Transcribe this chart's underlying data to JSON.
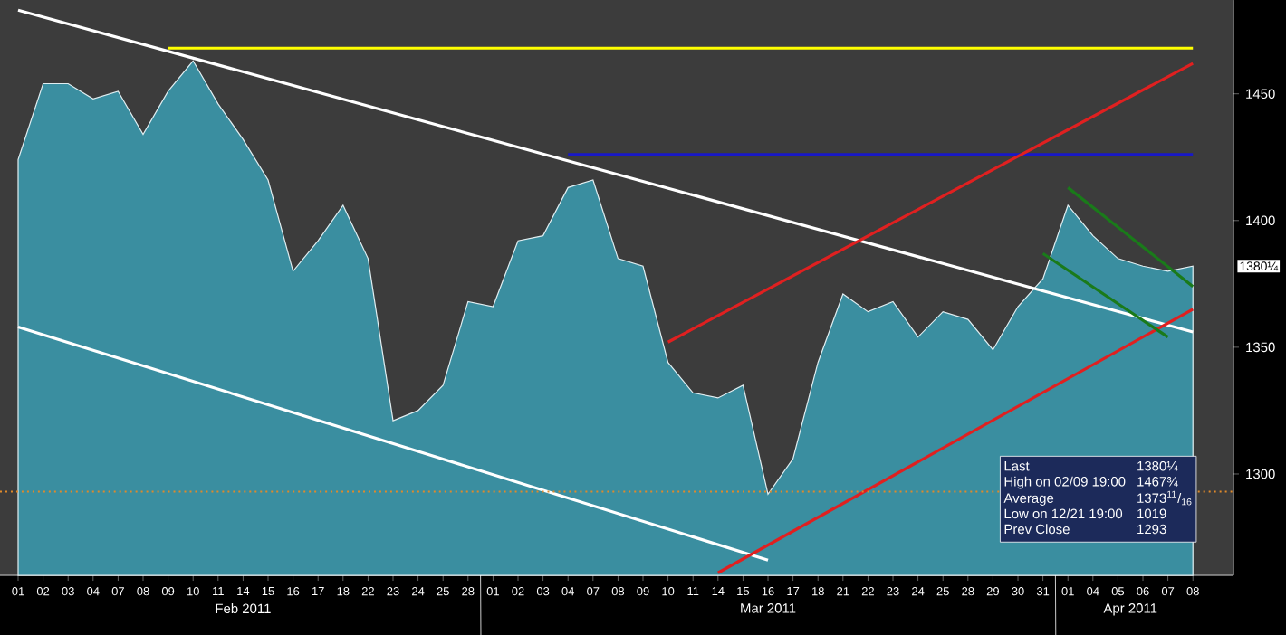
{
  "chart_data": {
    "type": "area",
    "categories": [
      "01",
      "02",
      "03",
      "04",
      "07",
      "08",
      "09",
      "10",
      "11",
      "14",
      "15",
      "16",
      "17",
      "18",
      "22",
      "23",
      "24",
      "25",
      "28",
      "01",
      "02",
      "03",
      "04",
      "07",
      "08",
      "09",
      "10",
      "11",
      "14",
      "15",
      "16",
      "17",
      "18",
      "21",
      "22",
      "23",
      "24",
      "25",
      "28",
      "29",
      "30",
      "31",
      "01",
      "04",
      "05",
      "06",
      "07",
      "08"
    ],
    "series": [
      {
        "color": "#3a8ea0",
        "values": [
          1424,
          1454,
          1454,
          1448,
          1451,
          1434,
          1451,
          1463,
          1446,
          1432,
          1416,
          1380,
          1392,
          1406,
          1385,
          1321,
          1325,
          1335,
          1368,
          1366,
          1392,
          1394,
          1413,
          1416,
          1385,
          1382,
          1344,
          1332,
          1330,
          1335,
          1292,
          1306,
          1344,
          1371,
          1364,
          1368,
          1354,
          1364,
          1361,
          1349,
          1366,
          1377,
          1406,
          1394,
          1385,
          1382,
          1380,
          1382
        ]
      },
      {
        "type": "line",
        "color": "#ffff00",
        "values": [
          null,
          null,
          null,
          null,
          null,
          null,
          1468,
          null,
          null,
          null,
          null,
          null,
          null,
          null,
          null,
          null,
          null,
          null,
          null,
          null,
          null,
          null,
          null,
          null,
          null,
          null,
          null,
          null,
          null,
          null,
          null,
          null,
          null,
          null,
          null,
          null,
          null,
          null,
          null,
          null,
          null,
          null,
          null,
          null,
          null,
          null,
          null,
          1468
        ]
      },
      {
        "type": "line",
        "color": "#1818c8",
        "values": [
          null,
          null,
          null,
          null,
          null,
          null,
          null,
          null,
          null,
          null,
          null,
          null,
          null,
          null,
          null,
          null,
          null,
          null,
          null,
          null,
          null,
          null,
          1426,
          null,
          null,
          null,
          null,
          null,
          null,
          null,
          null,
          null,
          null,
          null,
          null,
          null,
          null,
          null,
          null,
          null,
          null,
          null,
          null,
          null,
          null,
          null,
          null,
          1426
        ]
      },
      {
        "type": "line",
        "color": "#ffffff",
        "values": [
          1483,
          null,
          null,
          null,
          null,
          null,
          null,
          null,
          null,
          null,
          null,
          null,
          null,
          null,
          null,
          null,
          null,
          null,
          null,
          null,
          null,
          null,
          null,
          null,
          null,
          null,
          null,
          null,
          null,
          null,
          null,
          null,
          null,
          null,
          null,
          null,
          null,
          null,
          null,
          null,
          null,
          null,
          null,
          null,
          null,
          null,
          null,
          1356
        ]
      },
      {
        "type": "line",
        "color": "#ffffff",
        "values": [
          1358,
          null,
          null,
          null,
          null,
          null,
          null,
          null,
          null,
          null,
          null,
          null,
          null,
          null,
          null,
          null,
          null,
          null,
          null,
          null,
          null,
          null,
          null,
          null,
          null,
          null,
          null,
          null,
          null,
          null,
          1266,
          null,
          null,
          null,
          null,
          null,
          null,
          null,
          null,
          null,
          null,
          null,
          null,
          null,
          null,
          null,
          null,
          null
        ]
      },
      {
        "type": "line",
        "color": "#e02020",
        "values": [
          null,
          null,
          null,
          null,
          null,
          null,
          null,
          null,
          null,
          null,
          null,
          null,
          null,
          null,
          null,
          null,
          null,
          null,
          null,
          null,
          null,
          null,
          null,
          null,
          null,
          null,
          1352,
          null,
          null,
          null,
          null,
          null,
          null,
          null,
          null,
          null,
          null,
          null,
          null,
          null,
          null,
          null,
          null,
          null,
          null,
          null,
          null,
          1462
        ]
      },
      {
        "type": "line",
        "color": "#e02020",
        "values": [
          null,
          null,
          null,
          null,
          null,
          null,
          null,
          null,
          null,
          null,
          null,
          null,
          null,
          null,
          null,
          null,
          null,
          null,
          null,
          null,
          null,
          null,
          null,
          null,
          null,
          null,
          null,
          null,
          1261,
          null,
          null,
          null,
          null,
          null,
          null,
          null,
          null,
          null,
          null,
          null,
          null,
          null,
          null,
          null,
          null,
          null,
          null,
          1365
        ]
      },
      {
        "type": "line",
        "color": "#1a7a1a",
        "values": [
          null,
          null,
          null,
          null,
          null,
          null,
          null,
          null,
          null,
          null,
          null,
          null,
          null,
          null,
          null,
          null,
          null,
          null,
          null,
          null,
          null,
          null,
          null,
          null,
          null,
          null,
          null,
          null,
          null,
          null,
          null,
          null,
          null,
          null,
          null,
          null,
          null,
          null,
          null,
          null,
          null,
          null,
          1413,
          null,
          null,
          null,
          null,
          1374
        ]
      },
      {
        "type": "line",
        "color": "#1a7a1a",
        "values": [
          null,
          null,
          null,
          null,
          null,
          null,
          null,
          null,
          null,
          null,
          null,
          null,
          null,
          null,
          null,
          null,
          null,
          null,
          null,
          null,
          null,
          null,
          null,
          null,
          null,
          null,
          null,
          null,
          null,
          null,
          null,
          null,
          null,
          null,
          null,
          null,
          null,
          null,
          null,
          null,
          null,
          1387,
          null,
          null,
          null,
          null,
          1354,
          null
        ]
      }
    ],
    "ylim": [
      1260,
      1487
    ],
    "yticks": [
      1300,
      1350,
      1400,
      1450
    ],
    "ref_lines": [
      {
        "axis": "y",
        "value": 1293,
        "color": "#e08a2a",
        "line_style": "dotted"
      }
    ],
    "annotations": [
      "Feb 2011",
      "Mar 2011",
      "Apr 2011",
      "Last",
      "1380¼",
      "High on 02/09 19:00",
      "1467¾",
      "Average",
      "1373$^{11}$/$_{16}$",
      "Low on 12/21 19:00",
      "1019",
      "Prev Close",
      "1293",
      "1380¼"
    ]
  }
}
